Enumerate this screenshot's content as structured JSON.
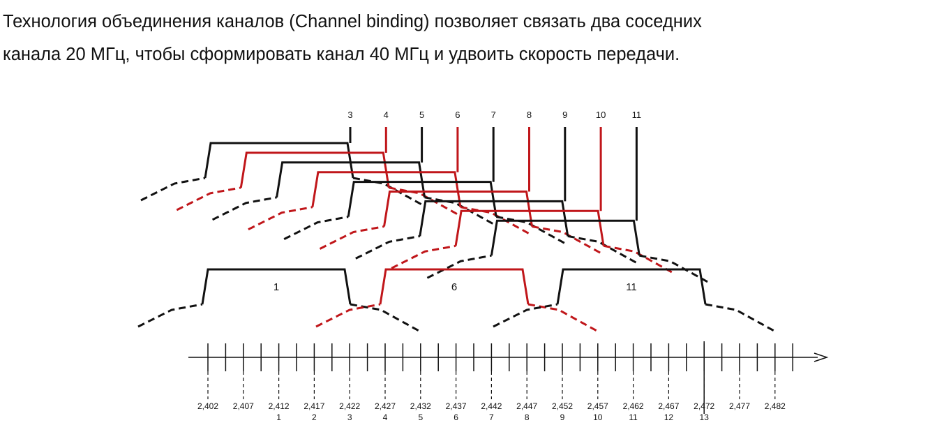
{
  "heading": {
    "line1": "Технология объединения каналов (Channel binding) позволяет связать два соседних",
    "line2": "канала 20 МГц, чтобы сформировать канал 40 МГц и удвоить скорость передачи."
  },
  "colors": {
    "black": "#111111",
    "red": "#c0161a"
  },
  "axis": {
    "frequencies": [
      "2,402",
      "2,407",
      "2,412",
      "2,417",
      "2,422",
      "2,427",
      "2,432",
      "2,437",
      "2,442",
      "2,447",
      "2,452",
      "2,457",
      "2,462",
      "2,467",
      "2,472",
      "2,477",
      "2,482"
    ],
    "channel_numbers": [
      "1",
      "2",
      "3",
      "4",
      "5",
      "6",
      "7",
      "8",
      "9",
      "10",
      "11",
      "12",
      "13"
    ],
    "channel_number_start_index": 2
  },
  "bottom_channels": [
    {
      "label": "1",
      "color": "black"
    },
    {
      "label": "6",
      "color": "red"
    },
    {
      "label": "11",
      "color": "black"
    }
  ],
  "top_channels": [
    {
      "label": "3",
      "color": "black"
    },
    {
      "label": "4",
      "color": "red"
    },
    {
      "label": "5",
      "color": "black"
    },
    {
      "label": "6",
      "color": "red"
    },
    {
      "label": "7",
      "color": "black"
    },
    {
      "label": "8",
      "color": "red"
    },
    {
      "label": "9",
      "color": "black"
    },
    {
      "label": "10",
      "color": "red"
    },
    {
      "label": "11",
      "color": "black"
    }
  ]
}
